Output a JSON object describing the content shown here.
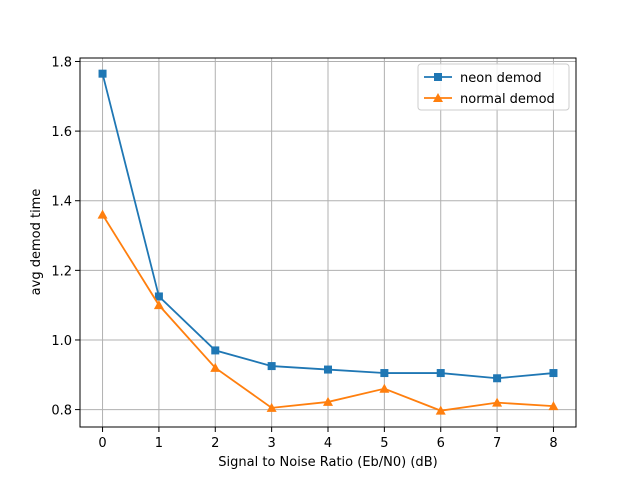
{
  "chart_data": {
    "type": "line",
    "title": "",
    "xlabel": "Signal to Noise Ratio (Eb/N0) (dB)",
    "ylabel": "avg demod time",
    "x": [
      0,
      1,
      2,
      3,
      4,
      5,
      6,
      7,
      8
    ],
    "xlim": [
      -0.4,
      8.4
    ],
    "ylim": [
      0.75,
      1.81
    ],
    "xticks": [
      "0",
      "1",
      "2",
      "3",
      "4",
      "5",
      "6",
      "7",
      "8"
    ],
    "yticks": [
      "0.8",
      "1.0",
      "1.2",
      "1.4",
      "1.6",
      "1.8"
    ],
    "grid": true,
    "legend_position": "top-right",
    "series": [
      {
        "name": "neon demod",
        "color": "#1f77b4",
        "marker": "square",
        "values": [
          1.765,
          1.125,
          0.97,
          0.925,
          0.915,
          0.905,
          0.905,
          0.89,
          0.905
        ]
      },
      {
        "name": "normal demod",
        "color": "#ff7f0e",
        "marker": "triangle",
        "values": [
          1.36,
          1.1,
          0.92,
          0.805,
          0.822,
          0.86,
          0.797,
          0.82,
          0.81
        ]
      }
    ]
  }
}
